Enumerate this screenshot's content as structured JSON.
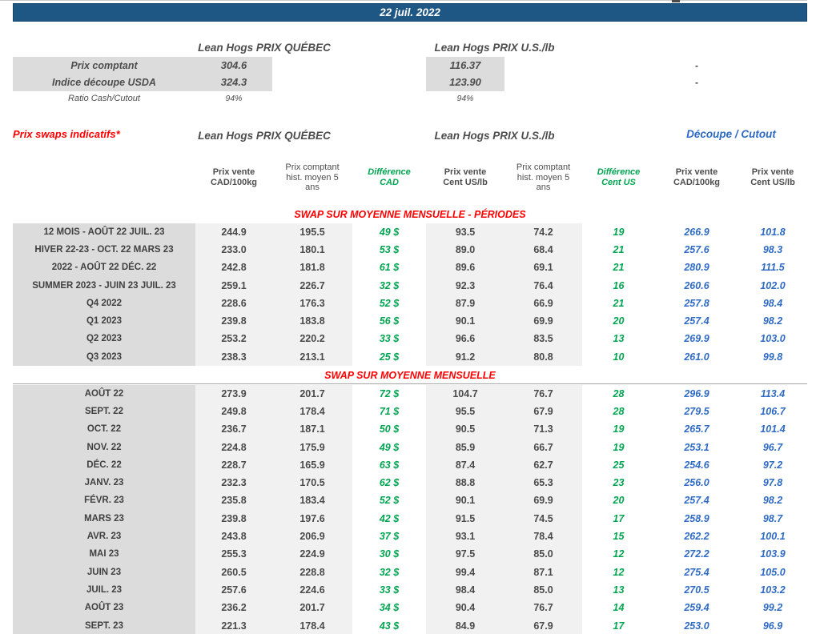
{
  "title_bar": {
    "date": "22 juil. 2022"
  },
  "spot": {
    "quebec_header": "Lean Hogs PRIX QUÉBEC",
    "us_header": "Lean Hogs PRIX U.S./lb",
    "rows": [
      {
        "label": "Prix comptant",
        "quebec": "304.6",
        "us": "116.37",
        "cutout": "-"
      },
      {
        "label": "Indice découpe USDA",
        "quebec": "324.3",
        "us": "123.90",
        "cutout": "-"
      },
      {
        "label": "Ratio Cash/Cutout",
        "quebec": "94%",
        "us": "94%"
      }
    ]
  },
  "swaps": {
    "left_label": "Prix swaps indicatifs*",
    "quebec_header": "Lean Hogs PRIX QUÉBEC",
    "us_header": "Lean Hogs PRIX U.S./lb",
    "cutout_header": "Découpe / Cutout",
    "column_headers": [
      "Prix vente\nCAD/100kg",
      "Prix comptant\nhist. moyen 5\nans",
      "Différence\nCAD",
      "Prix vente\nCent US/lb",
      "Prix comptant\nhist. moyen 5\nans",
      "Différence\nCent US",
      "Prix vente\nCAD/100kg",
      "Prix vente\nCent US/lb"
    ]
  },
  "sections": [
    {
      "title": "SWAP SUR MOYENNE MENSUELLE - PÉRIODES",
      "rows": [
        [
          "12 MOIS - AOÛT 22 JUIL. 23",
          "244.9",
          "195.5",
          "49 $",
          "93.5",
          "74.2",
          "19",
          "266.9",
          "101.8"
        ],
        [
          "HIVER 22-23 - OCT. 22 MARS 23",
          "233.0",
          "180.1",
          "53 $",
          "89.0",
          "68.4",
          "21",
          "257.6",
          "98.3"
        ],
        [
          "2022 - AOÛT 22 DÉC. 22",
          "242.8",
          "181.8",
          "61 $",
          "89.6",
          "69.1",
          "21",
          "280.9",
          "111.5"
        ],
        [
          "SUMMER 2023 - JUIN 23 JUIL. 23",
          "259.1",
          "226.7",
          "32 $",
          "92.3",
          "76.4",
          "16",
          "260.6",
          "102.0"
        ],
        [
          "Q4 2022",
          "228.6",
          "176.3",
          "52 $",
          "87.9",
          "66.9",
          "21",
          "257.8",
          "98.4"
        ],
        [
          "Q1 2023",
          "239.8",
          "183.8",
          "56 $",
          "90.1",
          "69.9",
          "20",
          "257.4",
          "98.2"
        ],
        [
          "Q2 2023",
          "253.2",
          "220.2",
          "33 $",
          "96.6",
          "83.5",
          "13",
          "269.9",
          "103.0"
        ],
        [
          "Q3 2023",
          "238.3",
          "213.1",
          "25 $",
          "91.2",
          "80.8",
          "10",
          "261.0",
          "99.8"
        ]
      ]
    },
    {
      "title": "SWAP SUR MOYENNE MENSUELLE",
      "rows": [
        [
          "AOÛT 22",
          "273.9",
          "201.7",
          "72 $",
          "104.7",
          "76.7",
          "28",
          "296.9",
          "113.4"
        ],
        [
          "SEPT. 22",
          "249.8",
          "178.4",
          "71 $",
          "95.5",
          "67.9",
          "28",
          "279.5",
          "106.7"
        ],
        [
          "OCT. 22",
          "236.7",
          "187.1",
          "50 $",
          "90.5",
          "71.3",
          "19",
          "265.7",
          "101.4"
        ],
        [
          "NOV. 22",
          "224.8",
          "175.9",
          "49 $",
          "85.9",
          "66.7",
          "19",
          "253.1",
          "96.7"
        ],
        [
          "DÉC. 22",
          "228.7",
          "165.9",
          "63 $",
          "87.4",
          "62.7",
          "25",
          "254.6",
          "97.2"
        ],
        [
          "JANV. 23",
          "232.3",
          "170.5",
          "62 $",
          "88.8",
          "65.3",
          "23",
          "256.0",
          "97.8"
        ],
        [
          "FÉVR. 23",
          "235.8",
          "183.4",
          "52 $",
          "90.1",
          "69.9",
          "20",
          "257.4",
          "98.2"
        ],
        [
          "MARS 23",
          "239.8",
          "197.6",
          "42 $",
          "91.5",
          "74.5",
          "17",
          "258.9",
          "98.7"
        ],
        [
          "AVR. 23",
          "243.8",
          "206.9",
          "37 $",
          "93.1",
          "78.4",
          "15",
          "262.2",
          "100.1"
        ],
        [
          "MAI 23",
          "255.3",
          "224.9",
          "30 $",
          "97.5",
          "85.0",
          "12",
          "272.2",
          "103.9"
        ],
        [
          "JUIN 23",
          "260.5",
          "228.8",
          "32 $",
          "99.4",
          "87.1",
          "12",
          "275.4",
          "105.0"
        ],
        [
          "JUIL. 23",
          "257.6",
          "224.6",
          "33 $",
          "98.4",
          "85.0",
          "13",
          "270.5",
          "103.2"
        ],
        [
          "AOÛT 23",
          "236.2",
          "201.7",
          "34 $",
          "90.4",
          "76.7",
          "14",
          "259.4",
          "99.2"
        ],
        [
          "SEPT. 23",
          "221.3",
          "178.4",
          "43 $",
          "84.9",
          "67.9",
          "17",
          "253.0",
          "96.9"
        ]
      ]
    }
  ],
  "colors": {
    "title_bar_bg": "#1E5684",
    "red_accent": "#FF0000",
    "green_accent": "#00A550",
    "blue_accent": "#2F6BC4",
    "label_column_bg": "#DCDCDC",
    "data_column_bg": "#F1F1F1"
  }
}
